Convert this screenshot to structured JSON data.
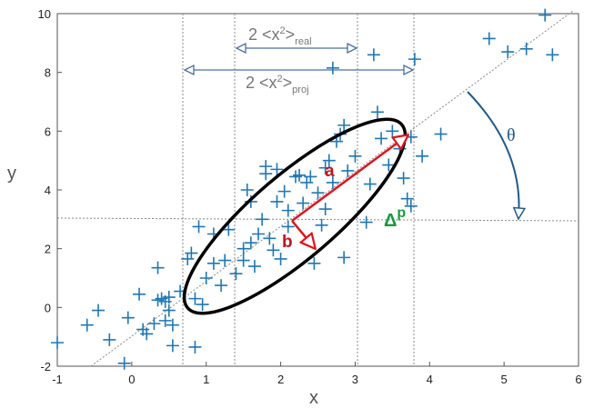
{
  "chart_data": {
    "type": "scatter",
    "xlabel": "x",
    "ylabel": "y",
    "xlim": [
      -1,
      6
    ],
    "ylim": [
      -2,
      10
    ],
    "xticks": [
      "-1",
      "0",
      "1",
      "2",
      "3",
      "4",
      "5",
      "6"
    ],
    "yticks": [
      "-2",
      "0",
      "2",
      "4",
      "6",
      "8",
      "10"
    ],
    "grid": false,
    "marker": "plus",
    "series": [
      {
        "color": "#1f77b4",
        "points": [
          [
            -1.0,
            -1.2
          ],
          [
            -0.6,
            -0.6
          ],
          [
            -0.45,
            -0.1
          ],
          [
            -0.3,
            -1.1
          ],
          [
            -0.1,
            -1.9
          ],
          [
            -0.05,
            -0.35
          ],
          [
            0.1,
            0.45
          ],
          [
            0.15,
            -0.75
          ],
          [
            0.2,
            -0.9
          ],
          [
            0.3,
            -0.55
          ],
          [
            0.35,
            0.25
          ],
          [
            0.4,
            0.3
          ],
          [
            0.35,
            1.35
          ],
          [
            0.45,
            -0.45
          ],
          [
            0.45,
            0.2
          ],
          [
            0.5,
            0.35
          ],
          [
            0.5,
            -0.1
          ],
          [
            0.55,
            -1.3
          ],
          [
            0.55,
            -0.6
          ],
          [
            0.65,
            0.55
          ],
          [
            0.75,
            1.65
          ],
          [
            0.8,
            1.85
          ],
          [
            0.85,
            0.3
          ],
          [
            0.85,
            -1.35
          ],
          [
            0.9,
            2.75
          ],
          [
            0.95,
            0.1
          ],
          [
            1.0,
            1.0
          ],
          [
            1.1,
            1.5
          ],
          [
            1.1,
            2.5
          ],
          [
            1.2,
            0.75
          ],
          [
            1.25,
            1.6
          ],
          [
            1.3,
            2.65
          ],
          [
            1.4,
            1.15
          ],
          [
            1.5,
            1.6
          ],
          [
            1.5,
            2.0
          ],
          [
            1.55,
            4.0
          ],
          [
            1.6,
            2.2
          ],
          [
            1.6,
            3.6
          ],
          [
            1.65,
            1.4
          ],
          [
            1.7,
            2.5
          ],
          [
            1.75,
            3.0
          ],
          [
            1.8,
            4.55
          ],
          [
            1.8,
            4.8
          ],
          [
            1.85,
            2.35
          ],
          [
            1.9,
            1.95
          ],
          [
            1.95,
            3.6
          ],
          [
            2.0,
            1.65
          ],
          [
            2.05,
            3.95
          ],
          [
            2.1,
            2.75
          ],
          [
            2.1,
            3.3
          ],
          [
            2.2,
            4.45
          ],
          [
            2.25,
            4.5
          ],
          [
            2.3,
            3.55
          ],
          [
            2.35,
            4.25
          ],
          [
            2.4,
            4.45
          ],
          [
            2.45,
            1.5
          ],
          [
            2.5,
            3.9
          ],
          [
            2.55,
            2.8
          ],
          [
            2.6,
            4.75
          ],
          [
            2.65,
            5.0
          ],
          [
            2.7,
            4.25
          ],
          [
            2.75,
            5.65
          ],
          [
            2.8,
            5.9
          ],
          [
            2.85,
            6.2
          ],
          [
            2.85,
            1.7
          ],
          [
            2.9,
            4.65
          ],
          [
            3.0,
            5.15
          ],
          [
            3.15,
            2.9
          ],
          [
            3.2,
            4.2
          ],
          [
            3.3,
            6.65
          ],
          [
            3.35,
            5.75
          ],
          [
            3.45,
            4.85
          ],
          [
            3.5,
            6.0
          ],
          [
            3.6,
            5.4
          ],
          [
            3.65,
            4.4
          ],
          [
            3.7,
            3.7
          ],
          [
            3.75,
            5.8
          ],
          [
            3.8,
            8.45
          ],
          [
            3.9,
            5.15
          ],
          [
            4.15,
            5.9
          ],
          [
            2.7,
            8.15
          ],
          [
            3.25,
            8.6
          ],
          [
            4.8,
            9.15
          ],
          [
            5.05,
            8.7
          ],
          [
            5.3,
            8.8
          ],
          [
            5.55,
            9.95
          ],
          [
            5.65,
            8.6
          ],
          [
            3.75,
            3.45
          ],
          [
            1.95,
            4.7
          ],
          [
            2.6,
            3.35
          ]
        ]
      }
    ],
    "annotations": {
      "real_label": "2 <x",
      "real_sup": "2",
      "real_mid": ">",
      "real_sub": "real",
      "proj_label": "2 <x",
      "proj_sup": "2",
      "proj_mid": ">",
      "proj_sub": "proj",
      "a_label": "a",
      "b_label": "b",
      "theta_label": "θ",
      "delta_label": "Δ",
      "delta_sup": "p"
    },
    "colors": {
      "points": "#1f77b4",
      "ellipse": "#000000",
      "axes_arrows": "#e0141e",
      "theta_arrow": "#1f5a8c",
      "delta": "#1a9a3a",
      "width_arrows": "#4a6fa5"
    }
  }
}
